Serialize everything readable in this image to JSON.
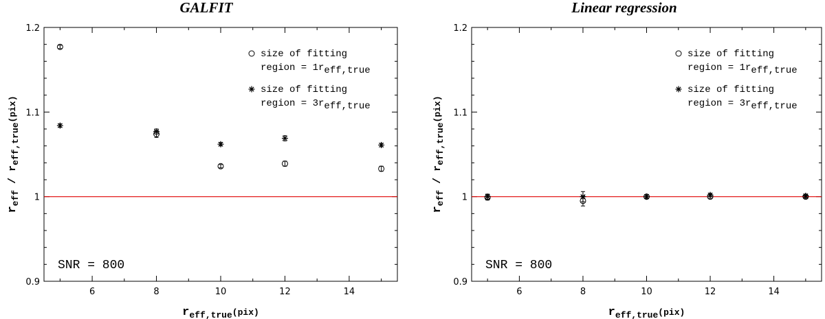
{
  "chart_data": [
    {
      "type": "scatter",
      "title": "GALFIT",
      "xlabel": {
        "base": "r",
        "sub": "eff,true",
        "suffix": "(pix)"
      },
      "ylabel": {
        "base": "r",
        "sub": "eff",
        "mid": " / r",
        "sub2": "eff,true",
        "suffix": "(pix)"
      },
      "xlim": [
        4.5,
        15.5
      ],
      "ylim": [
        0.9,
        1.2
      ],
      "xticks": [
        6,
        8,
        10,
        12,
        14
      ],
      "yticks": [
        0.9,
        1,
        1.1,
        1.2
      ],
      "ytick_labels": [
        "0.9",
        "1",
        "1.1",
        "1.2"
      ],
      "reference_line": {
        "y": 1,
        "color": "#e00000"
      },
      "annotation": "SNR = 800",
      "legend": {
        "position": "top-right",
        "entries": [
          {
            "marker": "circle",
            "text1": "size of fitting",
            "text2_base": "region = 1r",
            "text2_sub": "eff,true"
          },
          {
            "marker": "asterisk",
            "text1": "size of fitting",
            "text2_base": "region = 3r",
            "text2_sub": "eff,true"
          }
        ]
      },
      "series": [
        {
          "marker": "circle",
          "x": [
            5,
            8,
            10,
            12,
            15
          ],
          "y": [
            1.177,
            1.074,
            1.036,
            1.039,
            1.033
          ],
          "yerr": [
            0.002,
            0.004,
            0.002,
            0.003,
            0.003
          ]
        },
        {
          "marker": "asterisk",
          "x": [
            5,
            8,
            10,
            12,
            15
          ],
          "y": [
            1.084,
            1.077,
            1.062,
            1.069,
            1.061
          ],
          "yerr": [
            0.002,
            0.003,
            0.002,
            0.003,
            0.002
          ]
        }
      ]
    },
    {
      "type": "scatter",
      "title": "Linear regression",
      "xlabel": {
        "base": "r",
        "sub": "eff,true",
        "suffix": "(pix)"
      },
      "ylabel": {
        "base": "r",
        "sub": "eff",
        "mid": " / r",
        "sub2": "eff,true",
        "suffix": "(pix)"
      },
      "xlim": [
        4.5,
        15.5
      ],
      "ylim": [
        0.9,
        1.2
      ],
      "xticks": [
        6,
        8,
        10,
        12,
        14
      ],
      "yticks": [
        0.9,
        1,
        1.1,
        1.2
      ],
      "ytick_labels": [
        "0.9",
        "1",
        "1.1",
        "1.2"
      ],
      "reference_line": {
        "y": 1,
        "color": "#e00000"
      },
      "annotation": "SNR = 800",
      "legend": {
        "position": "top-right",
        "entries": [
          {
            "marker": "circle",
            "text1": "size of fitting",
            "text2_base": "region = 1r",
            "text2_sub": "eff,true"
          },
          {
            "marker": "asterisk",
            "text1": "size of fitting",
            "text2_base": "region = 3r",
            "text2_sub": "eff,true"
          }
        ]
      },
      "series": [
        {
          "marker": "circle",
          "x": [
            5,
            8,
            10,
            12,
            15
          ],
          "y": [
            0.999,
            0.995,
            1.0,
            1.0,
            1.0
          ],
          "yerr": [
            0.003,
            0.006,
            0.002,
            0.002,
            0.002
          ]
        },
        {
          "marker": "asterisk",
          "x": [
            5,
            8,
            10,
            12,
            15
          ],
          "y": [
            1.0,
            1.0,
            1.0,
            1.002,
            1.001
          ],
          "yerr": [
            0.003,
            0.006,
            0.002,
            0.002,
            0.002
          ]
        }
      ]
    }
  ]
}
